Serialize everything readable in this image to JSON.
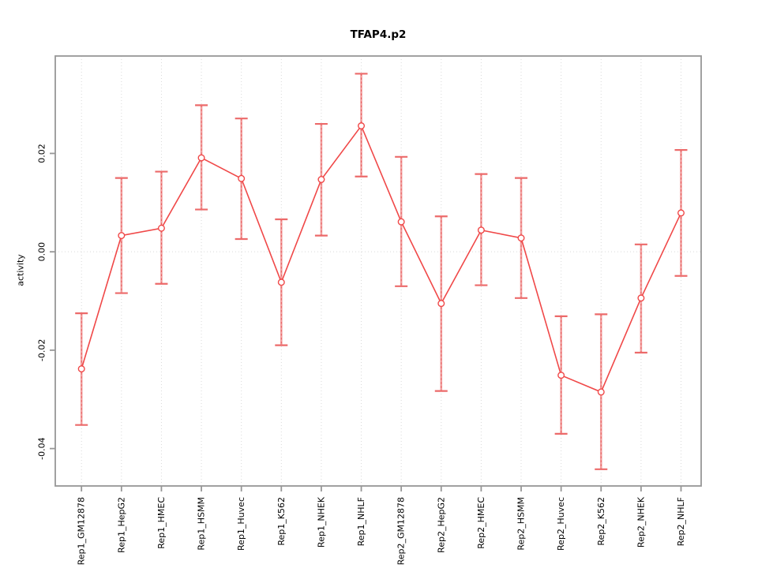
{
  "figure": {
    "title": "TFAP4.p2"
  },
  "chart_data": {
    "type": "line",
    "title": "TFAP4.p2",
    "xlabel": "",
    "ylabel": "activity",
    "legend": "none",
    "grid": "dotted vertical gridline at each category; dotted horizontal line at y=0",
    "marker": "open-circle",
    "error_bars": true,
    "categories": [
      "Rep1_GM12878",
      "Rep1_HepG2",
      "Rep1_HMEC",
      "Rep1_HSMM",
      "Rep1_Huvec",
      "Rep1_K562",
      "Rep1_NHEK",
      "Rep1_NHLF",
      "Rep2_GM12878",
      "Rep2_HepG2",
      "Rep2_HMEC",
      "Rep2_HSMM",
      "Rep2_Huvec",
      "Rep2_K562",
      "Rep2_NHEK",
      "Rep2_NHLF"
    ],
    "series": [
      {
        "name": "activity",
        "values": [
          -0.0238,
          0.0033,
          0.0048,
          0.0191,
          0.0149,
          -0.0062,
          0.0147,
          0.0256,
          0.0061,
          -0.0105,
          0.0044,
          0.0028,
          -0.0251,
          -0.0285,
          -0.0094,
          0.0079
        ],
        "error_high": [
          -0.0125,
          0.015,
          0.0163,
          0.0298,
          0.0271,
          0.0066,
          0.026,
          0.0362,
          0.0193,
          0.0072,
          0.0158,
          0.015,
          -0.0131,
          -0.0127,
          0.0015,
          0.0207
        ],
        "error_low": [
          -0.0352,
          -0.0084,
          -0.0065,
          0.0086,
          0.0026,
          -0.019,
          0.0033,
          0.0153,
          -0.007,
          -0.0283,
          -0.0068,
          -0.0094,
          -0.037,
          -0.0442,
          -0.0205,
          -0.0049
        ]
      }
    ],
    "yticks": {
      "values": [
        0.02,
        0.0,
        -0.02,
        -0.04
      ],
      "labels": [
        "0.02",
        "0.00",
        "-0.02",
        "-0.04"
      ]
    },
    "ylim": [
      -0.0476,
      0.0398
    ],
    "colors": {
      "line": "#f04848",
      "marker_stroke": "#f04848",
      "marker_fill": "#ffffff",
      "error_bar_pale": "#f2a0a0",
      "error_bar_dash": "#e85f5f",
      "error_cap": "#ec6a6a",
      "frame": "#979797",
      "grid": "#d9d9d9",
      "text": "#000000"
    }
  }
}
